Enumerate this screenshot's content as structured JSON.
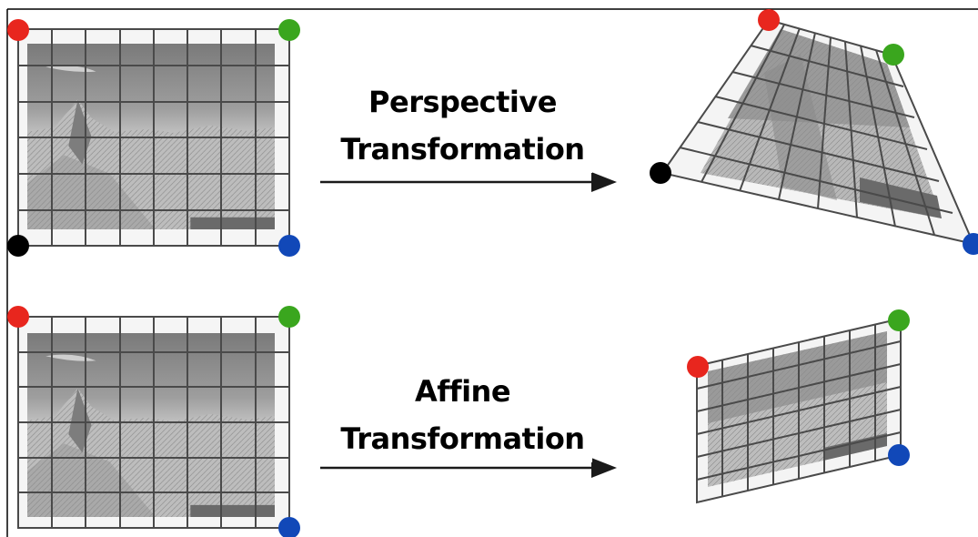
{
  "diagram": {
    "perspective": {
      "label_line1": "Perspective",
      "label_line2": "Transformation"
    },
    "affine": {
      "label_line1": "Affine",
      "label_line2": "Transformation"
    }
  },
  "colors": {
    "red": "#e8261e",
    "green": "#3aa61e",
    "blue": "#1148b8",
    "black": "#000000",
    "grid": "#4a4a4a",
    "frame_bg": "#f8f8f8",
    "arrow": "#1a1a1a"
  },
  "grid_divisions": {
    "columns": 8,
    "rows": 6
  }
}
